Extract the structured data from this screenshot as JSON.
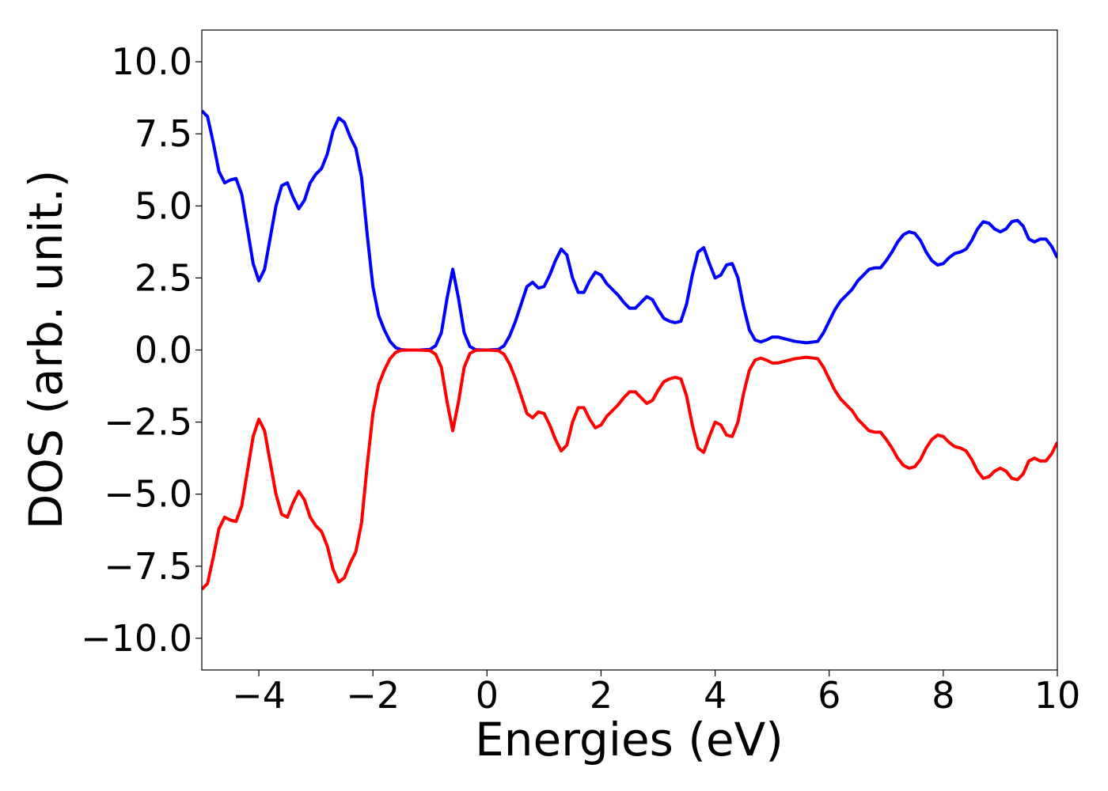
{
  "chart_data": {
    "type": "line",
    "xlabel": "Energies (eV)",
    "ylabel": "DOS (arb. unit.)",
    "xlim": [
      -5,
      10
    ],
    "ylim": [
      -11.1,
      11.1
    ],
    "xticks": [
      {
        "value": -4,
        "label": "−4"
      },
      {
        "value": -2,
        "label": "−2"
      },
      0,
      2,
      4,
      6,
      8,
      10
    ],
    "yticks": [
      {
        "value": -10,
        "label": "−10.0"
      },
      {
        "value": -7.5,
        "label": "−7.5"
      },
      {
        "value": -5,
        "label": "−5.0"
      },
      {
        "value": -2.5,
        "label": "−2.5"
      },
      {
        "value": 0,
        "label": "0.0"
      },
      {
        "value": 2.5,
        "label": "2.5"
      },
      {
        "value": 5,
        "label": "5.0"
      },
      {
        "value": 7.5,
        "label": "7.5"
      },
      {
        "value": 10,
        "label": "10.0"
      }
    ],
    "grid": false,
    "x": [
      -5,
      -4.9,
      -4.8,
      -4.7,
      -4.6,
      -4.5,
      -4.4,
      -4.3,
      -4.2,
      -4.1,
      -4,
      -3.9,
      -3.8,
      -3.7,
      -3.6,
      -3.5,
      -3.4,
      -3.3,
      -3.2,
      -3.1,
      -3,
      -2.9,
      -2.8,
      -2.7,
      -2.6,
      -2.5,
      -2.4,
      -2.3,
      -2.2,
      -2.1,
      -2,
      -1.9,
      -1.8,
      -1.7,
      -1.6,
      -1.5,
      -1.4,
      -1.2,
      -1,
      -0.9,
      -0.8,
      -0.7,
      -0.6,
      -0.5,
      -0.4,
      -0.3,
      -0.2,
      0,
      0.2,
      0.3,
      0.4,
      0.5,
      0.6,
      0.7,
      0.8,
      0.9,
      1,
      1.1,
      1.2,
      1.3,
      1.4,
      1.5,
      1.6,
      1.7,
      1.8,
      1.9,
      2,
      2.1,
      2.2,
      2.3,
      2.4,
      2.5,
      2.6,
      2.7,
      2.8,
      2.9,
      3,
      3.1,
      3.2,
      3.3,
      3.4,
      3.5,
      3.6,
      3.7,
      3.8,
      3.9,
      4,
      4.1,
      4.2,
      4.3,
      4.4,
      4.5,
      4.6,
      4.7,
      4.8,
      4.9,
      5,
      5.1,
      5.2,
      5.4,
      5.6,
      5.8,
      5.9,
      6,
      6.1,
      6.2,
      6.3,
      6.4,
      6.5,
      6.6,
      6.7,
      6.8,
      6.9,
      7,
      7.1,
      7.2,
      7.3,
      7.4,
      7.5,
      7.6,
      7.7,
      7.8,
      7.9,
      8,
      8.1,
      8.2,
      8.3,
      8.4,
      8.5,
      8.6,
      8.7,
      8.8,
      8.9,
      9,
      9.1,
      9.2,
      9.3,
      9.4,
      9.5,
      9.6,
      9.7,
      9.8,
      9.9,
      10
    ],
    "series": [
      {
        "color": "#0000ff",
        "values": [
          8.3,
          8.1,
          7.2,
          6.2,
          5.8,
          5.9,
          5.95,
          5.4,
          4.2,
          3.0,
          2.4,
          2.8,
          3.9,
          5.0,
          5.7,
          5.8,
          5.3,
          4.9,
          5.2,
          5.8,
          6.1,
          6.3,
          6.8,
          7.6,
          8.05,
          7.9,
          7.4,
          7.0,
          6.0,
          4.0,
          2.2,
          1.2,
          0.7,
          0.3,
          0.08,
          0.01,
          0,
          0,
          0.02,
          0.15,
          0.6,
          1.8,
          2.8,
          1.8,
          0.6,
          0.12,
          0.01,
          0,
          0.02,
          0.15,
          0.5,
          1.0,
          1.6,
          2.2,
          2.35,
          2.15,
          2.2,
          2.6,
          3.1,
          3.5,
          3.3,
          2.5,
          2.0,
          2.0,
          2.4,
          2.7,
          2.6,
          2.3,
          2.1,
          1.9,
          1.65,
          1.45,
          1.45,
          1.65,
          1.85,
          1.75,
          1.4,
          1.1,
          1.0,
          0.95,
          1.0,
          1.6,
          2.6,
          3.4,
          3.55,
          3.0,
          2.5,
          2.6,
          2.95,
          3.0,
          2.5,
          1.5,
          0.7,
          0.35,
          0.28,
          0.35,
          0.45,
          0.45,
          0.4,
          0.3,
          0.25,
          0.3,
          0.6,
          1.0,
          1.4,
          1.7,
          1.9,
          2.1,
          2.4,
          2.6,
          2.8,
          2.85,
          2.85,
          3.1,
          3.4,
          3.75,
          4.0,
          4.1,
          4.05,
          3.8,
          3.4,
          3.1,
          2.95,
          3.0,
          3.2,
          3.35,
          3.4,
          3.5,
          3.8,
          4.2,
          4.45,
          4.4,
          4.2,
          4.1,
          4.2,
          4.45,
          4.5,
          4.3,
          3.85,
          3.75,
          3.85,
          3.85,
          3.6,
          3.2
        ]
      },
      {
        "color": "#ff0000",
        "values": [
          -8.3,
          -8.1,
          -7.2,
          -6.2,
          -5.8,
          -5.9,
          -5.95,
          -5.4,
          -4.2,
          -3.0,
          -2.4,
          -2.8,
          -3.9,
          -5.0,
          -5.7,
          -5.8,
          -5.3,
          -4.9,
          -5.2,
          -5.8,
          -6.1,
          -6.3,
          -6.8,
          -7.6,
          -8.05,
          -7.9,
          -7.4,
          -7.0,
          -6.0,
          -4.0,
          -2.2,
          -1.2,
          -0.7,
          -0.3,
          -0.08,
          -0.01,
          0,
          0,
          -0.02,
          -0.15,
          -0.6,
          -1.8,
          -2.8,
          -1.8,
          -0.6,
          -0.12,
          -0.01,
          0,
          -0.02,
          -0.15,
          -0.5,
          -1.0,
          -1.6,
          -2.2,
          -2.35,
          -2.15,
          -2.2,
          -2.6,
          -3.1,
          -3.5,
          -3.3,
          -2.5,
          -2.0,
          -2.0,
          -2.4,
          -2.7,
          -2.6,
          -2.3,
          -2.1,
          -1.9,
          -1.65,
          -1.45,
          -1.45,
          -1.65,
          -1.85,
          -1.75,
          -1.4,
          -1.1,
          -1.0,
          -0.95,
          -1.0,
          -1.6,
          -2.6,
          -3.4,
          -3.55,
          -3.0,
          -2.5,
          -2.6,
          -2.95,
          -3.0,
          -2.5,
          -1.5,
          -0.7,
          -0.35,
          -0.28,
          -0.35,
          -0.45,
          -0.45,
          -0.4,
          -0.3,
          -0.25,
          -0.3,
          -0.6,
          -1.0,
          -1.4,
          -1.7,
          -1.9,
          -2.1,
          -2.4,
          -2.6,
          -2.8,
          -2.85,
          -2.85,
          -3.1,
          -3.4,
          -3.75,
          -4.0,
          -4.1,
          -4.05,
          -3.8,
          -3.4,
          -3.1,
          -2.95,
          -3.0,
          -3.2,
          -3.35,
          -3.4,
          -3.5,
          -3.8,
          -4.2,
          -4.45,
          -4.4,
          -4.2,
          -4.1,
          -4.2,
          -4.45,
          -4.5,
          -4.3,
          -3.85,
          -3.75,
          -3.85,
          -3.85,
          -3.6,
          -3.2
        ]
      }
    ]
  }
}
